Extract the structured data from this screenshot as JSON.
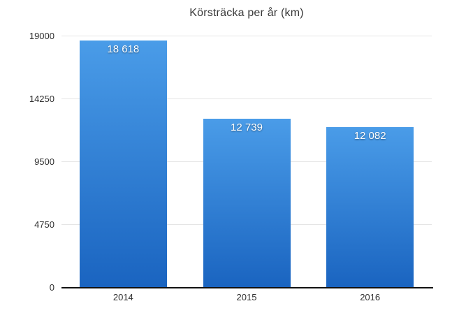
{
  "chart_data": {
    "type": "bar",
    "title": "Körsträcka per år (km)",
    "categories": [
      "2014",
      "2015",
      "2016"
    ],
    "values": [
      18618,
      12739,
      12082
    ],
    "value_labels": [
      "18 618",
      "12 739",
      "12 082"
    ],
    "xlabel": "",
    "ylabel": "",
    "ylim": [
      0,
      19000
    ],
    "y_ticks": [
      0,
      4750,
      9500,
      14250,
      19000
    ],
    "y_tick_labels": [
      "0",
      "4750",
      "9500",
      "14250",
      "19000"
    ],
    "grid": "horizontal",
    "legend": "none",
    "colors": {
      "bar_gradient_top": "#4A9CE8",
      "bar_gradient_bottom": "#1A64C0",
      "gridline": "#e5e5e5",
      "axis_line": "#111111",
      "value_label_text": "#ffffff",
      "tick_text": "#2f2f2f",
      "title_text": "#383838",
      "background": "#ffffff"
    }
  }
}
